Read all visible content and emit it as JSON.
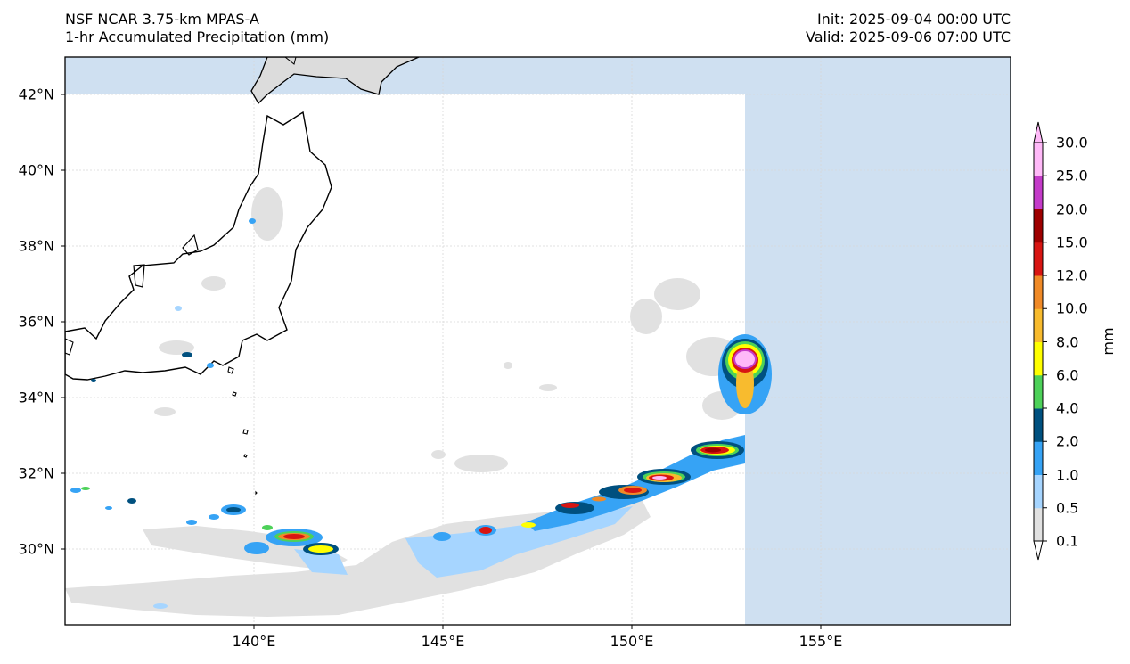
{
  "header": {
    "model": "NSF NCAR 3.75-km MPAS-A",
    "field": "1-hr Accumulated Precipitation (mm)",
    "init": "Init: 2025-09-04 00:00 UTC",
    "valid": "Valid: 2025-09-06 07:00 UTC"
  },
  "map": {
    "lon_range": [
      135,
      160
    ],
    "lat_range": [
      28,
      43
    ],
    "lat_ticks": [
      "42°N",
      "40°N",
      "38°N",
      "36°N",
      "34°N",
      "32°N",
      "30°N"
    ],
    "lon_ticks": [
      "140°E",
      "145°E",
      "150°E",
      "155°E"
    ],
    "domain_edges": {
      "north_lat": 42,
      "east_lon": 153
    },
    "colors": {
      "ocean_outside_domain": "#cfe0f1",
      "land_outside_domain": "#dcdcdc",
      "coastline": "#000000"
    }
  },
  "colorbar": {
    "unit": "mm",
    "levels": [
      "0.1",
      "0.5",
      "1.0",
      "2.0",
      "4.0",
      "6.0",
      "8.0",
      "10.0",
      "12.0",
      "15.0",
      "20.0",
      "25.0",
      "30.0"
    ],
    "colors": [
      "#e1e1e1",
      "#a6d5ff",
      "#36a3f5",
      "#00507f",
      "#4dd159",
      "#ffff00",
      "#f8bb2e",
      "#f08a27",
      "#d81512",
      "#9e0000",
      "#c43bc9",
      "#ffb9f8"
    ]
  }
}
